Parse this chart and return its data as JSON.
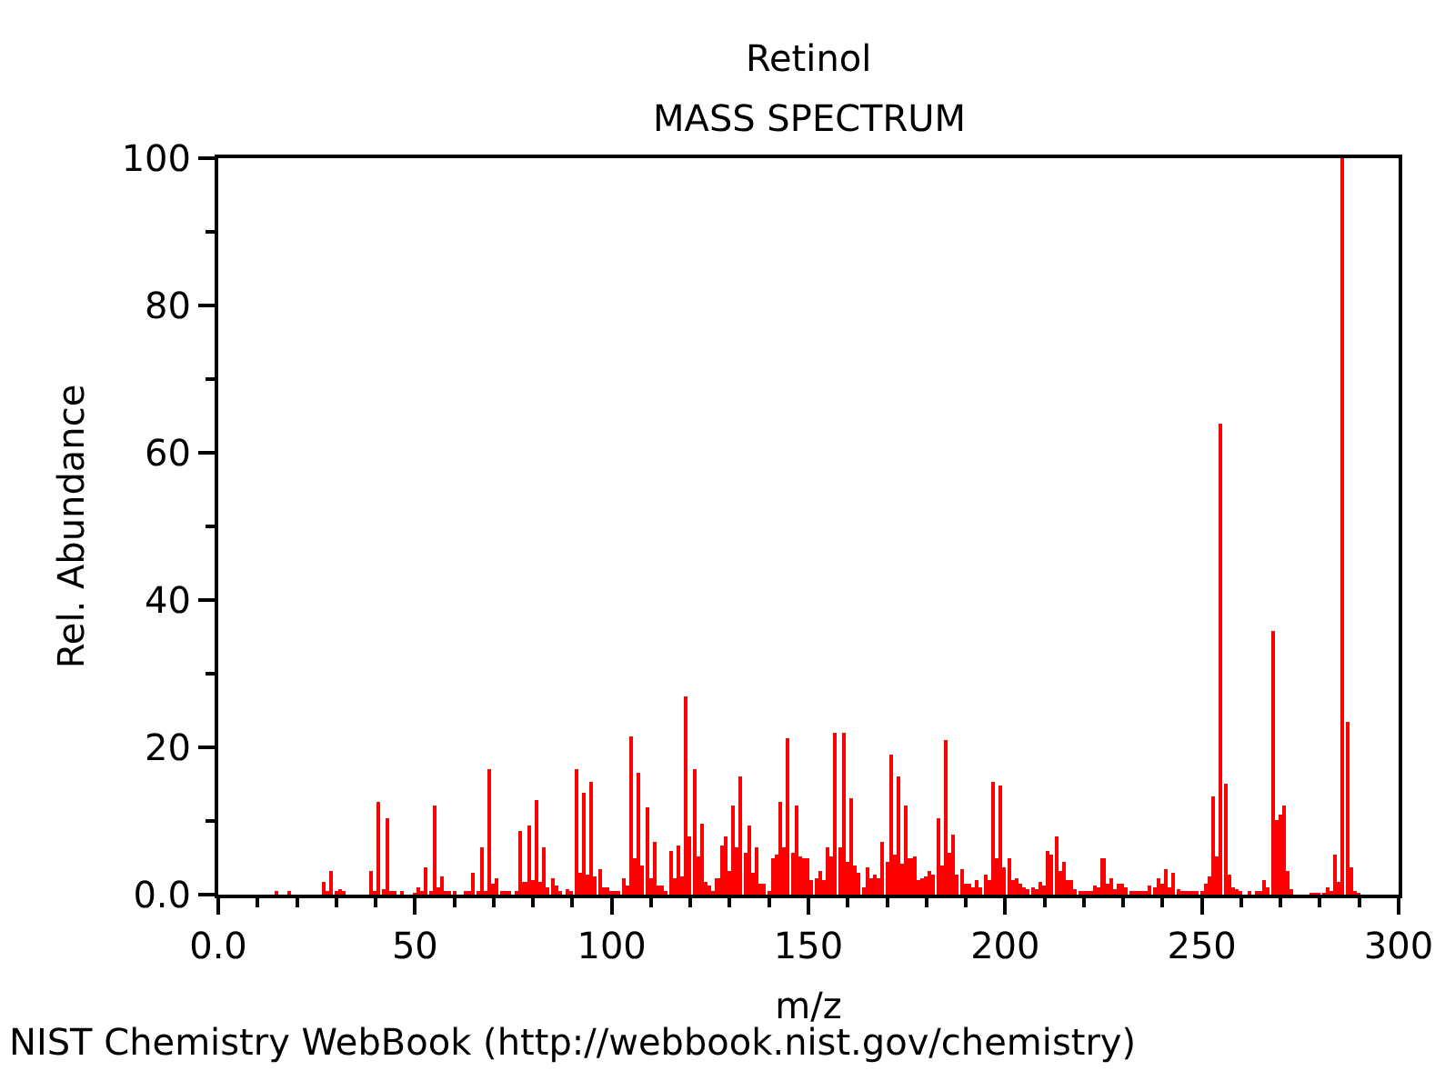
{
  "chart_data": {
    "type": "bar",
    "title": "Retinol",
    "subtitle": "MASS SPECTRUM",
    "xlabel": "m/z",
    "ylabel": "Rel. Abundance",
    "annotations": [
      "NIST Chemistry WebBook (http://webbook.nist.gov/chemistry)"
    ],
    "series": [
      {
        "color": "#ff0000",
        "x": [
          15,
          18,
          27,
          28,
          29,
          30,
          31,
          32,
          39,
          40,
          41,
          42,
          43,
          44,
          45,
          47,
          50,
          51,
          52,
          53,
          54,
          55,
          56,
          57,
          58,
          59,
          60,
          63,
          64,
          65,
          66,
          67,
          68,
          69,
          70,
          71,
          72,
          73,
          74,
          76,
          77,
          78,
          79,
          80,
          81,
          82,
          83,
          84,
          85,
          86,
          87,
          89,
          90,
          91,
          92,
          93,
          94,
          95,
          96,
          97,
          98,
          99,
          100,
          101,
          102,
          103,
          104,
          105,
          106,
          107,
          108,
          109,
          110,
          111,
          112,
          113,
          114,
          115,
          116,
          117,
          118,
          119,
          120,
          121,
          122,
          123,
          124,
          125,
          126,
          127,
          128,
          129,
          130,
          131,
          132,
          133,
          134,
          135,
          136,
          137,
          138,
          139,
          140,
          141,
          142,
          143,
          144,
          145,
          146,
          147,
          148,
          149,
          150,
          151,
          152,
          153,
          154,
          155,
          156,
          157,
          158,
          159,
          160,
          161,
          162,
          163,
          164,
          165,
          166,
          167,
          168,
          169,
          170,
          171,
          172,
          173,
          174,
          175,
          176,
          177,
          178,
          179,
          180,
          181,
          182,
          183,
          184,
          185,
          186,
          187,
          188,
          189,
          190,
          191,
          192,
          193,
          194,
          195,
          196,
          197,
          198,
          199,
          200,
          201,
          202,
          203,
          204,
          205,
          206,
          207,
          208,
          209,
          210,
          211,
          212,
          213,
          214,
          215,
          216,
          217,
          218,
          219,
          220,
          221,
          222,
          223,
          224,
          225,
          226,
          227,
          228,
          229,
          230,
          231,
          232,
          233,
          234,
          235,
          236,
          237,
          238,
          239,
          240,
          241,
          242,
          243,
          244,
          245,
          246,
          247,
          248,
          249,
          250,
          251,
          252,
          253,
          254,
          255,
          256,
          257,
          258,
          259,
          260,
          262,
          264,
          265,
          266,
          267,
          268,
          269,
          270,
          271,
          272,
          273,
          278,
          279,
          280,
          281,
          282,
          283,
          284,
          285,
          286,
          287,
          288,
          289,
          290
        ],
        "values": [
          0.5,
          0.3,
          1.8,
          0.6,
          3.3,
          0.3,
          0.8,
          0.3,
          3.3,
          0.6,
          12.7,
          0.8,
          10.4,
          0.6,
          0.6,
          0.3,
          0.2,
          1,
          0.5,
          3.8,
          0.6,
          12.2,
          1,
          2.5,
          0.5,
          0.3,
          0.3,
          0.6,
          0.3,
          3,
          0.6,
          6.5,
          0.6,
          17.1,
          1.4,
          2.3,
          0.3,
          0.3,
          0.3,
          0.3,
          8.6,
          1.8,
          9.5,
          2,
          12.9,
          1.8,
          6.3,
          1,
          2.3,
          1.3,
          0.5,
          0.8,
          0.3,
          17.1,
          3,
          13.9,
          2.8,
          15.4,
          2.5,
          3.5,
          1,
          1,
          0.5,
          0.5,
          0.5,
          2.3,
          1.3,
          21.6,
          5,
          16.6,
          4,
          11.9,
          2.3,
          7.2,
          1.3,
          1.3,
          0.5,
          6,
          2.3,
          6.7,
          2.5,
          27,
          8,
          17.1,
          5.3,
          9.7,
          1.8,
          1.3,
          0.5,
          2.3,
          6.7,
          8,
          3.3,
          12.2,
          6.3,
          16.1,
          5.8,
          9.5,
          3,
          6.5,
          1.6,
          1.6,
          0.6,
          5,
          5.5,
          12.7,
          6.3,
          21.3,
          5.8,
          12.2,
          5.3,
          5,
          5,
          2,
          2.3,
          3.3,
          2,
          6.5,
          5.3,
          22.1,
          6.3,
          22.1,
          4.5,
          13.2,
          4,
          3,
          1.1,
          3.8,
          2.3,
          2.8,
          2.3,
          7.2,
          4.5,
          19.1,
          5.5,
          16.1,
          4.3,
          12.2,
          5,
          5.3,
          2,
          2.3,
          2.5,
          3.3,
          2.8,
          10.4,
          4,
          21.1,
          5.8,
          8.2,
          2.8,
          3.5,
          1.6,
          1.6,
          1.1,
          2,
          1.1,
          2.8,
          2,
          15.4,
          5,
          14.7,
          3.8,
          5,
          2,
          2.3,
          1.6,
          1.1,
          0.8,
          1.1,
          0.8,
          1.8,
          1.3,
          6,
          5.5,
          8,
          3.3,
          4.5,
          2,
          2,
          0.8,
          0.6,
          0.6,
          0.6,
          0.6,
          1.3,
          1.1,
          5,
          1.6,
          2.3,
          0.8,
          1.6,
          1.6,
          1.1,
          0.6,
          0.6,
          0.3,
          0.3,
          0.3,
          1.3,
          1.1,
          2.3,
          1.6,
          3.5,
          1.1,
          3,
          0.8,
          0.6,
          0.3,
          0.3,
          0.3,
          0.6,
          0.3,
          1.6,
          2.5,
          13.4,
          5.3,
          64,
          15.1,
          2.8,
          1.1,
          0.8,
          0.3,
          0.3,
          0.3,
          0.3,
          2,
          1.1,
          35.8,
          10.2,
          10.9,
          12.2,
          3.3,
          0.8,
          0.2,
          0.2,
          0.2,
          0.2,
          1.1,
          0.6,
          5.5,
          1.8,
          100,
          23.5,
          3.8,
          0.6,
          0.2
        ]
      }
    ],
    "xlim": [
      0,
      300
    ],
    "xticks": [
      {
        "value": 0,
        "label": "0.0"
      },
      {
        "value": 10,
        "label": null
      },
      {
        "value": 20,
        "label": null
      },
      {
        "value": 30,
        "label": null
      },
      {
        "value": 40,
        "label": null
      },
      50,
      {
        "value": 60,
        "label": null
      },
      {
        "value": 70,
        "label": null
      },
      {
        "value": 80,
        "label": null
      },
      {
        "value": 90,
        "label": null
      },
      100,
      {
        "value": 110,
        "label": null
      },
      {
        "value": 120,
        "label": null
      },
      {
        "value": 130,
        "label": null
      },
      {
        "value": 140,
        "label": null
      },
      150,
      {
        "value": 160,
        "label": null
      },
      {
        "value": 170,
        "label": null
      },
      {
        "value": 180,
        "label": null
      },
      {
        "value": 190,
        "label": null
      },
      200,
      {
        "value": 210,
        "label": null
      },
      {
        "value": 220,
        "label": null
      },
      {
        "value": 230,
        "label": null
      },
      {
        "value": 240,
        "label": null
      },
      250,
      {
        "value": 260,
        "label": null
      },
      {
        "value": 270,
        "label": null
      },
      {
        "value": 280,
        "label": null
      },
      {
        "value": 290,
        "label": null
      },
      300
    ],
    "ylim": [
      0,
      100
    ],
    "yticks": [
      {
        "value": 0,
        "label": "0.0"
      },
      {
        "value": 10,
        "label": null
      },
      20,
      {
        "value": 30,
        "label": null
      },
      40,
      {
        "value": 50,
        "label": null
      },
      60,
      {
        "value": 70,
        "label": null
      },
      80,
      {
        "value": 90,
        "label": null
      },
      100
    ]
  }
}
